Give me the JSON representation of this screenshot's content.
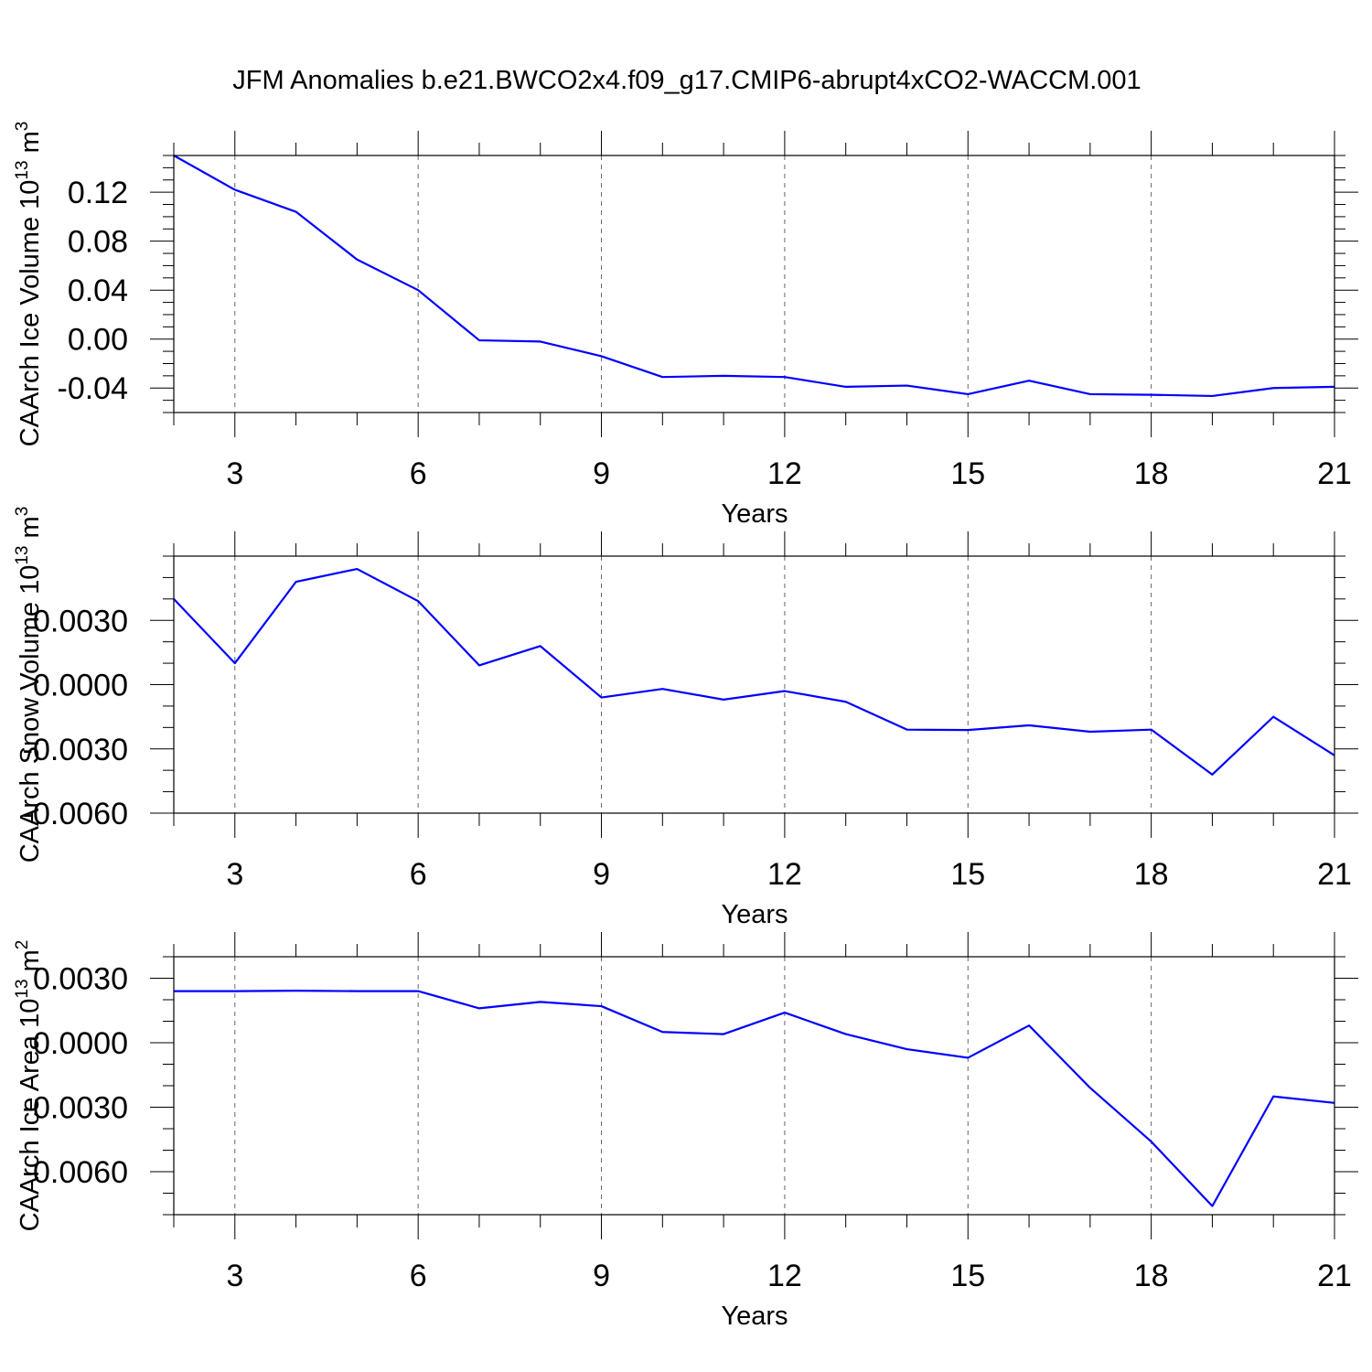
{
  "title": "JFM Anomalies b.e21.BWCO2x4.f09_g17.CMIP6-abrupt4xCO2-WACCM.001",
  "colors": {
    "line": "#0000ff",
    "axis": "#000000",
    "grid": "#666666"
  },
  "chart_data": [
    {
      "type": "line",
      "title": "JFM Anomalies b.e21.BWCO2x4.f09_g17.CMIP6-abrupt4xCO2-WACCM.001",
      "xlabel": "Years",
      "ylabel": "CAArch Ice Volume 10",
      "ylabel_sup": "13",
      "ylabel_tail": " m",
      "ylabel_sup2": "3",
      "xlim": [
        2,
        21
      ],
      "ylim": [
        -0.06,
        0.15
      ],
      "xticks": [
        3,
        6,
        9,
        12,
        15,
        18,
        21
      ],
      "xtick_labels": [
        "3",
        "6",
        "9",
        "12",
        "15",
        "18",
        "21"
      ],
      "yticks": [
        -0.04,
        0.0,
        0.04,
        0.08,
        0.12
      ],
      "ytick_labels": [
        "-0.04",
        "0.00",
        "0.04",
        "0.08",
        "0.12"
      ],
      "yminor_step": 0.01,
      "series": [
        {
          "name": "CAArch Ice Volume",
          "x": [
            2,
            3,
            4,
            5,
            6,
            7,
            8,
            9,
            10,
            11,
            12,
            13,
            14,
            15,
            16,
            17,
            18,
            19,
            20,
            21
          ],
          "values": [
            0.15,
            0.122,
            0.104,
            0.065,
            0.04,
            -0.001,
            -0.002,
            -0.014,
            -0.031,
            -0.03,
            -0.031,
            -0.039,
            -0.038,
            -0.045,
            -0.034,
            -0.045,
            -0.0455,
            -0.0465,
            -0.04,
            -0.039
          ]
        }
      ]
    },
    {
      "type": "line",
      "xlabel": "Years",
      "ylabel": "CAArch Snow Volume 10",
      "ylabel_sup": "13",
      "ylabel_tail": " m",
      "ylabel_sup2": "3",
      "xlim": [
        2,
        21
      ],
      "ylim": [
        -0.006,
        0.006
      ],
      "xticks": [
        3,
        6,
        9,
        12,
        15,
        18,
        21
      ],
      "xtick_labels": [
        "3",
        "6",
        "9",
        "12",
        "15",
        "18",
        "21"
      ],
      "yticks": [
        -0.006,
        -0.003,
        0.0,
        0.003
      ],
      "ytick_labels": [
        "-0.0060",
        "-0.0030",
        "0.0000",
        "0.0030"
      ],
      "yminor_step": 0.001,
      "series": [
        {
          "name": "CAArch Snow Volume",
          "x": [
            2,
            3,
            4,
            5,
            6,
            7,
            8,
            9,
            10,
            11,
            12,
            13,
            14,
            15,
            16,
            17,
            18,
            19,
            20,
            21
          ],
          "values": [
            0.004,
            0.001,
            0.0048,
            0.0054,
            0.0039,
            0.0009,
            0.0018,
            -0.0006,
            -0.0002,
            -0.0007,
            -0.0003,
            -0.0008,
            -0.0021,
            -0.00212,
            -0.0019,
            -0.0022,
            -0.0021,
            -0.0042,
            -0.0015,
            -0.0033
          ]
        }
      ]
    },
    {
      "type": "line",
      "xlabel": "Years",
      "ylabel": "CAArch Ice Area 10",
      "ylabel_sup": "13",
      "ylabel_tail": " m",
      "ylabel_sup2": "2",
      "xlim": [
        2,
        21
      ],
      "ylim": [
        -0.008,
        0.004
      ],
      "xticks": [
        3,
        6,
        9,
        12,
        15,
        18,
        21
      ],
      "xtick_labels": [
        "3",
        "6",
        "9",
        "12",
        "15",
        "18",
        "21"
      ],
      "yticks": [
        -0.006,
        -0.003,
        0.0,
        0.003
      ],
      "ytick_labels": [
        "-0.0060",
        "-0.0030",
        "0.0000",
        "0.0030"
      ],
      "yminor_step": 0.001,
      "series": [
        {
          "name": "CAArch Ice Area",
          "x": [
            2,
            3,
            4,
            5,
            6,
            7,
            8,
            9,
            10,
            11,
            12,
            13,
            14,
            15,
            16,
            17,
            18,
            19,
            20,
            21
          ],
          "values": [
            0.0024,
            0.0024,
            0.00242,
            0.0024,
            0.0024,
            0.0016,
            0.0019,
            0.0017,
            0.0005,
            0.0004,
            0.0014,
            0.0004,
            -0.0003,
            -0.0007,
            0.0008,
            -0.0021,
            -0.0046,
            -0.0076,
            -0.0025,
            -0.0028
          ]
        }
      ]
    }
  ]
}
